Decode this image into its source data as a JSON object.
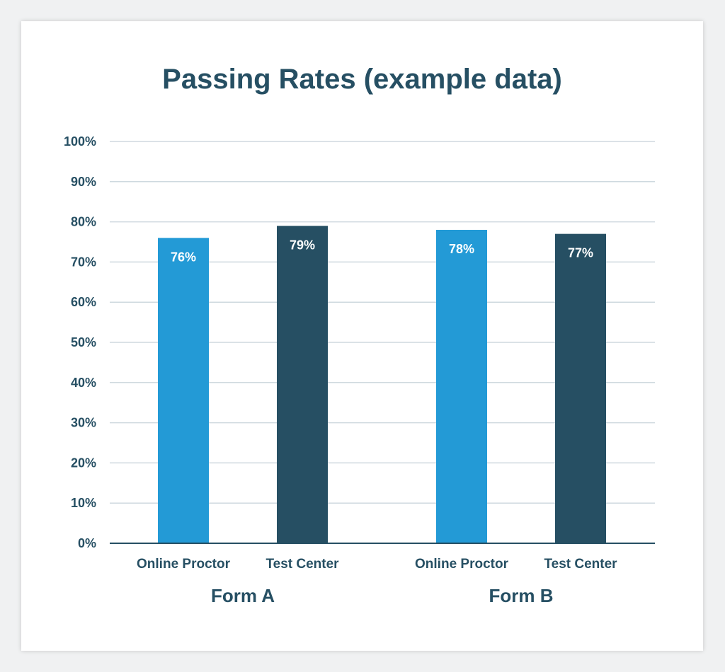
{
  "chart_data": {
    "type": "bar",
    "title": "Passing Rates (example data)",
    "y_ticks": [
      "0%",
      "10%",
      "20%",
      "30%",
      "40%",
      "50%",
      "60%",
      "70%",
      "80%",
      "90%",
      "100%"
    ],
    "ylim": [
      0,
      100
    ],
    "grid": true,
    "groups": [
      {
        "name": "Form A",
        "bars": [
          {
            "category": "Online Proctor",
            "value": 76,
            "label": "76%"
          },
          {
            "category": "Test Center",
            "value": 79,
            "label": "79%"
          }
        ]
      },
      {
        "name": "Form B",
        "bars": [
          {
            "category": "Online Proctor",
            "value": 78,
            "label": "78%"
          },
          {
            "category": "Test Center",
            "value": 77,
            "label": "77%"
          }
        ]
      }
    ],
    "colors": {
      "Online Proctor": "#239ad6",
      "Test Center": "#264f63",
      "text": "#264f63",
      "grid": "#cfd9df",
      "axis": "#264f63"
    }
  }
}
